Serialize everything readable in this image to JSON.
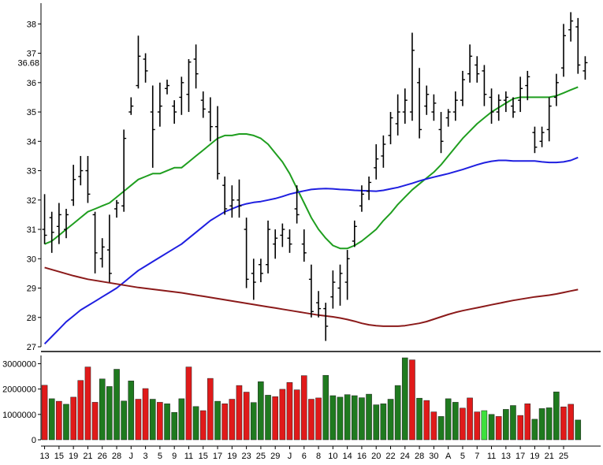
{
  "chart_data": [
    {
      "type": "ohlc",
      "panel": "price",
      "current_price_label": "36.68",
      "ylim": [
        27,
        38.6
      ],
      "y_ticks": [
        "27",
        "28",
        "29",
        "30",
        "31",
        "32",
        "33",
        "34",
        "35",
        "36",
        "37",
        "38"
      ],
      "grid": false,
      "bar_color": "#000000",
      "bars": [
        {
          "h": 32.2,
          "l": 30.5,
          "o": 31.0,
          "c": 30.8
        },
        {
          "h": 31.6,
          "l": 30.2,
          "o": 31.4,
          "c": 30.9
        },
        {
          "h": 31.9,
          "l": 30.5,
          "o": 31.1,
          "c": 31.5
        },
        {
          "h": 31.7,
          "l": 30.7,
          "o": 31.0,
          "c": 31.5
        },
        {
          "h": 33.2,
          "l": 31.8,
          "o": 32.0,
          "c": 32.7
        },
        {
          "h": 33.5,
          "l": 32.5,
          "o": 32.8,
          "c": 33.0
        },
        {
          "h": 33.5,
          "l": 31.9,
          "o": 33.0,
          "c": 32.2
        },
        {
          "h": 31.6,
          "l": 29.5,
          "o": 31.5,
          "c": 30.2
        },
        {
          "h": 30.7,
          "l": 29.7,
          "o": 30.0,
          "c": 30.4
        },
        {
          "h": 31.5,
          "l": 29.2,
          "o": 30.3,
          "c": 29.5
        },
        {
          "h": 32.0,
          "l": 31.4,
          "o": 31.7,
          "c": 31.9
        },
        {
          "h": 34.4,
          "l": 31.6,
          "o": 31.8,
          "c": 34.1
        },
        {
          "h": 35.5,
          "l": 34.9,
          "o": 35.0,
          "c": 35.2
        },
        {
          "h": 37.6,
          "l": 35.8,
          "o": 35.9,
          "c": 36.9
        },
        {
          "h": 37.0,
          "l": 36.0,
          "o": 36.8,
          "c": 36.4
        },
        {
          "h": 35.9,
          "l": 33.1,
          "o": 35.0,
          "c": 34.4
        },
        {
          "h": 36.0,
          "l": 34.5,
          "o": 35.0,
          "c": 35.2
        },
        {
          "h": 36.1,
          "l": 35.6,
          "o": 35.8,
          "c": 35.9
        },
        {
          "h": 35.4,
          "l": 34.6,
          "o": 35.2,
          "c": 35.0
        },
        {
          "h": 36.2,
          "l": 34.9,
          "o": 35.5,
          "c": 36.0
        },
        {
          "h": 36.8,
          "l": 35.0,
          "o": 35.6,
          "c": 36.7
        },
        {
          "h": 37.3,
          "l": 35.8,
          "o": 36.8,
          "c": 36.3
        },
        {
          "h": 35.7,
          "l": 34.8,
          "o": 35.4,
          "c": 35.1
        },
        {
          "h": 35.5,
          "l": 34.0,
          "o": 35.0,
          "c": 34.5
        },
        {
          "h": 35.2,
          "l": 32.7,
          "o": 34.5,
          "c": 32.9
        },
        {
          "h": 32.8,
          "l": 31.5,
          "o": 32.5,
          "c": 31.7
        },
        {
          "h": 32.5,
          "l": 31.4,
          "o": 31.8,
          "c": 32.0
        },
        {
          "h": 32.7,
          "l": 31.4,
          "o": 32.0,
          "c": 31.8
        },
        {
          "h": 31.4,
          "l": 29.0,
          "o": 31.0,
          "c": 29.3
        },
        {
          "h": 30.0,
          "l": 28.6,
          "o": 29.5,
          "c": 29.2
        },
        {
          "h": 30.0,
          "l": 29.2,
          "o": 29.8,
          "c": 29.5
        },
        {
          "h": 31.3,
          "l": 29.5,
          "o": 29.8,
          "c": 31.0
        },
        {
          "h": 31.0,
          "l": 30.0,
          "o": 30.5,
          "c": 30.7
        },
        {
          "h": 31.2,
          "l": 30.4,
          "o": 30.8,
          "c": 31.0
        },
        {
          "h": 31.0,
          "l": 30.2,
          "o": 30.7,
          "c": 30.5
        },
        {
          "h": 32.5,
          "l": 31.2,
          "o": 31.7,
          "c": 31.5
        },
        {
          "h": 31.0,
          "l": 29.9,
          "o": 30.5,
          "c": 30.2
        },
        {
          "h": 29.8,
          "l": 28.0,
          "o": 29.3,
          "c": 28.2
        },
        {
          "h": 28.9,
          "l": 28.0,
          "o": 28.5,
          "c": 28.3
        },
        {
          "h": 28.5,
          "l": 27.2,
          "o": 28.3,
          "c": 27.7
        },
        {
          "h": 29.6,
          "l": 28.3,
          "o": 28.7,
          "c": 29.2
        },
        {
          "h": 29.8,
          "l": 28.4,
          "o": 29.0,
          "c": 29.5
        },
        {
          "h": 30.3,
          "l": 28.6,
          "o": 29.2,
          "c": 30.0
        },
        {
          "h": 31.3,
          "l": 30.4,
          "o": 30.6,
          "c": 31.1
        },
        {
          "h": 32.5,
          "l": 31.6,
          "o": 31.8,
          "c": 32.2
        },
        {
          "h": 32.8,
          "l": 32.0,
          "o": 32.3,
          "c": 32.6
        },
        {
          "h": 33.9,
          "l": 32.7,
          "o": 33.1,
          "c": 33.4
        },
        {
          "h": 34.2,
          "l": 33.1,
          "o": 33.5,
          "c": 33.9
        },
        {
          "h": 35.0,
          "l": 33.9,
          "o": 34.2,
          "c": 34.8
        },
        {
          "h": 35.6,
          "l": 34.2,
          "o": 34.6,
          "c": 35.0
        },
        {
          "h": 35.8,
          "l": 34.6,
          "o": 35.0,
          "c": 35.4
        },
        {
          "h": 37.7,
          "l": 34.7,
          "o": 35.0,
          "c": 37.1
        },
        {
          "h": 36.5,
          "l": 34.1,
          "o": 36.0,
          "c": 34.4
        },
        {
          "h": 35.9,
          "l": 34.9,
          "o": 35.2,
          "c": 35.6
        },
        {
          "h": 35.6,
          "l": 34.7,
          "o": 35.0,
          "c": 35.3
        },
        {
          "h": 35.0,
          "l": 33.6,
          "o": 34.4,
          "c": 34.0
        },
        {
          "h": 35.1,
          "l": 34.5,
          "o": 34.8,
          "c": 35.0
        },
        {
          "h": 35.7,
          "l": 34.7,
          "o": 35.0,
          "c": 35.4
        },
        {
          "h": 36.4,
          "l": 35.2,
          "o": 35.4,
          "c": 36.1
        },
        {
          "h": 37.3,
          "l": 36.0,
          "o": 36.3,
          "c": 36.9
        },
        {
          "h": 36.9,
          "l": 36.0,
          "o": 36.6,
          "c": 36.3
        },
        {
          "h": 36.6,
          "l": 35.2,
          "o": 36.4,
          "c": 35.6
        },
        {
          "h": 35.8,
          "l": 34.6,
          "o": 35.5,
          "c": 35.0
        },
        {
          "h": 35.6,
          "l": 34.7,
          "o": 35.0,
          "c": 35.4
        },
        {
          "h": 35.7,
          "l": 35.0,
          "o": 35.4,
          "c": 35.5
        },
        {
          "h": 35.5,
          "l": 34.8,
          "o": 35.2,
          "c": 35.0
        },
        {
          "h": 36.2,
          "l": 35.0,
          "o": 35.4,
          "c": 35.8
        },
        {
          "h": 36.4,
          "l": 35.4,
          "o": 35.9,
          "c": 36.2
        },
        {
          "h": 34.5,
          "l": 33.6,
          "o": 34.3,
          "c": 33.8
        },
        {
          "h": 34.5,
          "l": 33.8,
          "o": 34.0,
          "c": 34.3
        },
        {
          "h": 35.5,
          "l": 34.0,
          "o": 34.4,
          "c": 35.2
        },
        {
          "h": 36.3,
          "l": 35.2,
          "o": 35.5,
          "c": 36.0
        },
        {
          "h": 38.0,
          "l": 36.2,
          "o": 36.5,
          "c": 37.6
        },
        {
          "h": 38.4,
          "l": 37.4,
          "o": 37.8,
          "c": 38.1
        },
        {
          "h": 38.2,
          "l": 36.3,
          "o": 37.9,
          "c": 36.6
        },
        {
          "h": 36.9,
          "l": 36.1,
          "o": 36.4,
          "c": 36.68
        }
      ],
      "moving_averages": [
        {
          "color": "#1f9e1f",
          "values": [
            30.5,
            30.6,
            30.8,
            31.0,
            31.2,
            31.4,
            31.6,
            31.7,
            31.8,
            31.9,
            32.1,
            32.3,
            32.5,
            32.7,
            32.8,
            32.9,
            32.9,
            33.0,
            33.1,
            33.1,
            33.3,
            33.5,
            33.7,
            33.9,
            34.1,
            34.2,
            34.2,
            34.25,
            34.25,
            34.2,
            34.1,
            33.9,
            33.6,
            33.3,
            32.9,
            32.4,
            31.9,
            31.4,
            31.0,
            30.7,
            30.45,
            30.35,
            30.35,
            30.45,
            30.6,
            30.8,
            31.0,
            31.3,
            31.55,
            31.85,
            32.1,
            32.35,
            32.55,
            32.75,
            32.95,
            33.2,
            33.5,
            33.8,
            34.1,
            34.35,
            34.6,
            34.8,
            35.0,
            35.15,
            35.3,
            35.45,
            35.5,
            35.5,
            35.5,
            35.5,
            35.5,
            35.55,
            35.65,
            35.75,
            35.85
          ]
        },
        {
          "color": "#1f1fe0",
          "values": [
            27.1,
            27.35,
            27.6,
            27.85,
            28.05,
            28.25,
            28.4,
            28.55,
            28.7,
            28.85,
            29.0,
            29.2,
            29.4,
            29.6,
            29.75,
            29.9,
            30.05,
            30.2,
            30.35,
            30.5,
            30.7,
            30.9,
            31.1,
            31.3,
            31.45,
            31.6,
            31.7,
            31.8,
            31.87,
            31.92,
            31.95,
            32.0,
            32.05,
            32.12,
            32.2,
            32.26,
            32.31,
            32.36,
            32.38,
            32.39,
            32.38,
            32.36,
            32.35,
            32.33,
            32.32,
            32.31,
            32.3,
            32.33,
            32.38,
            32.43,
            32.5,
            32.57,
            32.65,
            32.72,
            32.78,
            32.84,
            32.9,
            32.97,
            33.04,
            33.12,
            33.2,
            33.27,
            33.32,
            33.35,
            33.35,
            33.33,
            33.33,
            33.33,
            33.33,
            33.3,
            33.28,
            33.28,
            33.3,
            33.35,
            33.45
          ]
        },
        {
          "color": "#8b1a1a",
          "values": [
            29.7,
            29.63,
            29.56,
            29.49,
            29.42,
            29.36,
            29.3,
            29.26,
            29.22,
            29.18,
            29.14,
            29.1,
            29.06,
            29.02,
            28.99,
            28.96,
            28.93,
            28.9,
            28.87,
            28.84,
            28.8,
            28.76,
            28.72,
            28.68,
            28.64,
            28.6,
            28.56,
            28.52,
            28.48,
            28.44,
            28.4,
            28.36,
            28.32,
            28.28,
            28.24,
            28.2,
            28.16,
            28.12,
            28.08,
            28.05,
            28.02,
            27.98,
            27.93,
            27.87,
            27.8,
            27.75,
            27.72,
            27.7,
            27.7,
            27.7,
            27.72,
            27.76,
            27.8,
            27.86,
            27.94,
            28.02,
            28.1,
            28.17,
            28.23,
            28.28,
            28.33,
            28.38,
            28.43,
            28.48,
            28.53,
            28.58,
            28.62,
            28.66,
            28.7,
            28.73,
            28.76,
            28.8,
            28.85,
            28.9,
            28.95
          ]
        }
      ]
    },
    {
      "type": "bar",
      "panel": "volume",
      "ylim": [
        0,
        3200000
      ],
      "y_ticks": [
        "0",
        "1000000",
        "2000000",
        "3000000"
      ],
      "grid": false,
      "colors": {
        "up": "#1f7a1f",
        "down": "#e01a1a",
        "highlight": "#3de03d"
      },
      "x_tick_labels": [
        "13",
        "15",
        "19",
        "21",
        "26",
        "28",
        "J",
        "3",
        "5",
        "9",
        "11",
        "15",
        "17",
        "19",
        "23",
        "25",
        "29",
        "J",
        "6",
        "8",
        "10",
        "14",
        "16",
        "20",
        "22",
        "24",
        "28",
        "30",
        "A",
        "5",
        "7",
        "11",
        "13",
        "17",
        "19",
        "21",
        "25"
      ],
      "values": [
        2150000,
        1620000,
        1520000,
        1400000,
        1680000,
        2340000,
        2870000,
        1480000,
        2400000,
        2100000,
        2780000,
        1530000,
        2320000,
        1600000,
        2020000,
        1600000,
        1480000,
        1420000,
        1080000,
        1620000,
        2870000,
        1310000,
        1150000,
        2420000,
        1520000,
        1420000,
        1600000,
        2140000,
        1880000,
        1470000,
        2290000,
        1760000,
        1700000,
        1990000,
        2260000,
        1970000,
        2530000,
        1600000,
        1650000,
        2540000,
        1740000,
        1680000,
        1780000,
        1740000,
        1660000,
        1800000,
        1380000,
        1420000,
        1600000,
        2140000,
        3230000,
        3150000,
        1640000,
        1550000,
        1100000,
        920000,
        1620000,
        1480000,
        1250000,
        1650000,
        1100000,
        1150000,
        1000000,
        920000,
        1200000,
        1350000,
        960000,
        1420000,
        810000,
        1230000,
        1260000,
        1890000,
        1300000,
        1400000,
        780000
      ],
      "bar_colors": [
        "down",
        "up",
        "down",
        "up",
        "down",
        "down",
        "down",
        "down",
        "up",
        "up",
        "up",
        "up",
        "up",
        "down",
        "down",
        "up",
        "down",
        "up",
        "up",
        "up",
        "down",
        "up",
        "down",
        "down",
        "up",
        "down",
        "down",
        "down",
        "down",
        "up",
        "up",
        "up",
        "down",
        "down",
        "down",
        "down",
        "down",
        "down",
        "down",
        "up",
        "up",
        "up",
        "up",
        "up",
        "up",
        "up",
        "up",
        "up",
        "up",
        "up",
        "up",
        "down",
        "up",
        "down",
        "down",
        "up",
        "up",
        "up",
        "down",
        "down",
        "down",
        "highlight",
        "up",
        "down",
        "up",
        "up",
        "down",
        "down",
        "up",
        "up",
        "up",
        "up",
        "down",
        "down",
        "up"
      ]
    }
  ]
}
